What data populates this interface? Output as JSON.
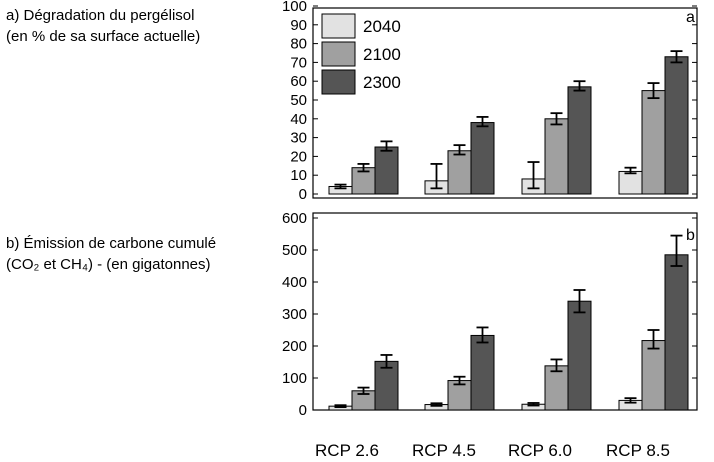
{
  "panel_a": {
    "label_line1": "a) Dégradation du pergélisol",
    "label_line2": "(en % de sa surface actuelle)"
  },
  "panel_b": {
    "label_line1": "b) Émission de carbone cumulé",
    "label_line2": "(CO₂ et CH₄) - (en gigatonnes)"
  },
  "colors": {
    "2040": "#e2e2e2",
    "2100": "#a0a0a0",
    "2300": "#555555"
  },
  "chart_data": [
    {
      "type": "bar",
      "panel_tag": "a",
      "categories": [
        "RCP 2.6",
        "RCP 4.5",
        "RCP 6.0",
        "RCP 8.5"
      ],
      "ylim": [
        0,
        100
      ],
      "yticks": [
        0,
        10,
        20,
        30,
        40,
        50,
        60,
        70,
        80,
        90,
        100
      ],
      "legend": {
        "position": "top-left"
      },
      "series": [
        {
          "name": "2040",
          "values": [
            4,
            7,
            8,
            12
          ],
          "err_low": [
            1,
            4,
            5,
            1
          ],
          "err_high": [
            1,
            9,
            9,
            2
          ]
        },
        {
          "name": "2100",
          "values": [
            14,
            23,
            40,
            55
          ],
          "err_low": [
            2,
            2,
            3,
            4
          ],
          "err_high": [
            2,
            3,
            3,
            4
          ]
        },
        {
          "name": "2300",
          "values": [
            25,
            38,
            57,
            73
          ],
          "err_low": [
            2,
            2,
            2,
            3
          ],
          "err_high": [
            3,
            3,
            3,
            3
          ]
        }
      ]
    },
    {
      "type": "bar",
      "panel_tag": "b",
      "categories": [
        "RCP 2.6",
        "RCP 4.5",
        "RCP 6.0",
        "RCP 8.5"
      ],
      "ylim": [
        0,
        600
      ],
      "yticks": [
        0,
        100,
        200,
        300,
        400,
        500,
        600
      ],
      "series": [
        {
          "name": "2040",
          "values": [
            12,
            17,
            18,
            30
          ],
          "err_low": [
            3,
            4,
            4,
            7
          ],
          "err_high": [
            3,
            4,
            4,
            7
          ]
        },
        {
          "name": "2100",
          "values": [
            60,
            92,
            138,
            217
          ],
          "err_low": [
            10,
            12,
            17,
            25
          ],
          "err_high": [
            10,
            12,
            20,
            33
          ]
        },
        {
          "name": "2300",
          "values": [
            152,
            233,
            340,
            485
          ],
          "err_low": [
            20,
            22,
            35,
            35
          ],
          "err_high": [
            20,
            25,
            35,
            60
          ]
        }
      ]
    }
  ]
}
